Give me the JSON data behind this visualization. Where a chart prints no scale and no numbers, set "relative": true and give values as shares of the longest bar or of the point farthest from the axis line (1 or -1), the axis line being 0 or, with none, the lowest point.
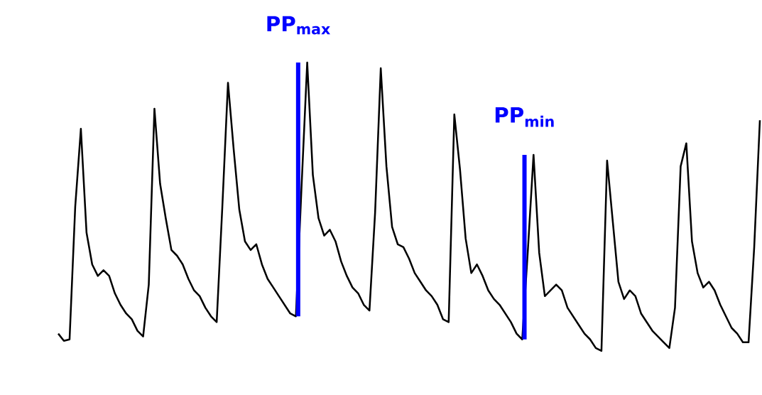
{
  "chart_data": {
    "type": "line",
    "relative": true,
    "categories": [
      null,
      null,
      null,
      null,
      null,
      null,
      null,
      null,
      null,
      null,
      null,
      null,
      null,
      null,
      null,
      null,
      null,
      null,
      null,
      null,
      null,
      null,
      null,
      null,
      null,
      null,
      null,
      null,
      null,
      null,
      null,
      null,
      null,
      null,
      null,
      null,
      null,
      null,
      null,
      null,
      null,
      null,
      null,
      null,
      null,
      null,
      null,
      null,
      null,
      null,
      null,
      null,
      null,
      null,
      null,
      null,
      null,
      null,
      null,
      null,
      null,
      null,
      null,
      null,
      null,
      null,
      null,
      null,
      null,
      null,
      null,
      null,
      null,
      null,
      null,
      null,
      null,
      null,
      null,
      null,
      null,
      null,
      null,
      null,
      null,
      null,
      null,
      null,
      null,
      null,
      null,
      null,
      null,
      null,
      null,
      null,
      null,
      null,
      null,
      null,
      null,
      null,
      null,
      null,
      null,
      null,
      null,
      null,
      null,
      null,
      null,
      null,
      null,
      null,
      null,
      null,
      null,
      null,
      null,
      null,
      null,
      null,
      null,
      null,
      null
    ],
    "series": [
      {
        "color": "#000000",
        "values": [
          0.06,
          0.035,
          0.04,
          0.5,
          0.77,
          0.41,
          0.3,
          0.26,
          0.28,
          0.26,
          0.2,
          0.16,
          0.13,
          0.11,
          0.07,
          0.05,
          0.23,
          0.84,
          0.58,
          0.46,
          0.35,
          0.33,
          0.3,
          0.25,
          0.21,
          0.19,
          0.15,
          0.12,
          0.1,
          0.5,
          0.93,
          0.7,
          0.49,
          0.38,
          0.35,
          0.37,
          0.3,
          0.25,
          0.22,
          0.19,
          0.16,
          0.13,
          0.12,
          0.57,
          1.0,
          0.61,
          0.46,
          0.4,
          0.42,
          0.38,
          0.31,
          0.26,
          0.22,
          0.2,
          0.16,
          0.14,
          0.48,
          0.98,
          0.64,
          0.43,
          0.37,
          0.36,
          0.32,
          0.27,
          0.24,
          0.21,
          0.19,
          0.16,
          0.11,
          0.1,
          0.82,
          0.63,
          0.39,
          0.27,
          0.3,
          0.26,
          0.21,
          0.18,
          0.16,
          0.13,
          0.1,
          0.06,
          0.04,
          0.35,
          0.68,
          0.34,
          0.19,
          0.21,
          0.23,
          0.21,
          0.15,
          0.12,
          0.09,
          0.06,
          0.04,
          0.01,
          0.0,
          0.66,
          0.45,
          0.24,
          0.18,
          0.21,
          0.19,
          0.13,
          0.1,
          0.07,
          0.05,
          0.03,
          0.01,
          0.15,
          0.64,
          0.72,
          0.38,
          0.27,
          0.22,
          0.24,
          0.21,
          0.16,
          0.12,
          0.08,
          0.06,
          0.03,
          0.03,
          0.36,
          0.8
        ]
      }
    ],
    "annotations": [
      "PP$_{max}$",
      "PP$_{min}$"
    ]
  }
}
